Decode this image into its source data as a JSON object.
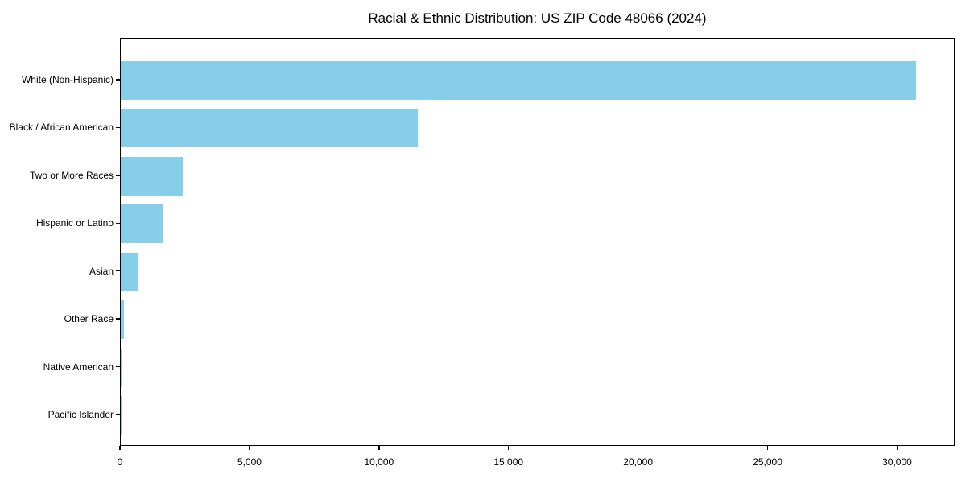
{
  "title": "Racial & Ethnic Distribution: US ZIP Code 48066 (2024)",
  "chart_data": {
    "type": "bar",
    "orientation": "horizontal",
    "title": "Racial & Ethnic Distribution: US ZIP Code 48066 (2024)",
    "xlabel": "",
    "ylabel": "",
    "categories": [
      "White (Non-Hispanic)",
      "Black / African American",
      "Two or More Races",
      "Hispanic or Latino",
      "Asian",
      "Other Race",
      "Native American",
      "Pacific Islander"
    ],
    "values": [
      30690,
      11460,
      2390,
      1615,
      680,
      125,
      60,
      15
    ],
    "xlim": [
      0,
      32222
    ],
    "xticks": [
      0,
      5000,
      10000,
      15000,
      20000,
      25000,
      30000
    ],
    "xtick_labels": [
      "0",
      "5,000",
      "10,000",
      "15,000",
      "20,000",
      "25,000",
      "30,000"
    ],
    "bar_color": "#87CEEB",
    "background_color": "#ffffff",
    "spine_color": "#000000",
    "grid": false,
    "legend": "none"
  }
}
